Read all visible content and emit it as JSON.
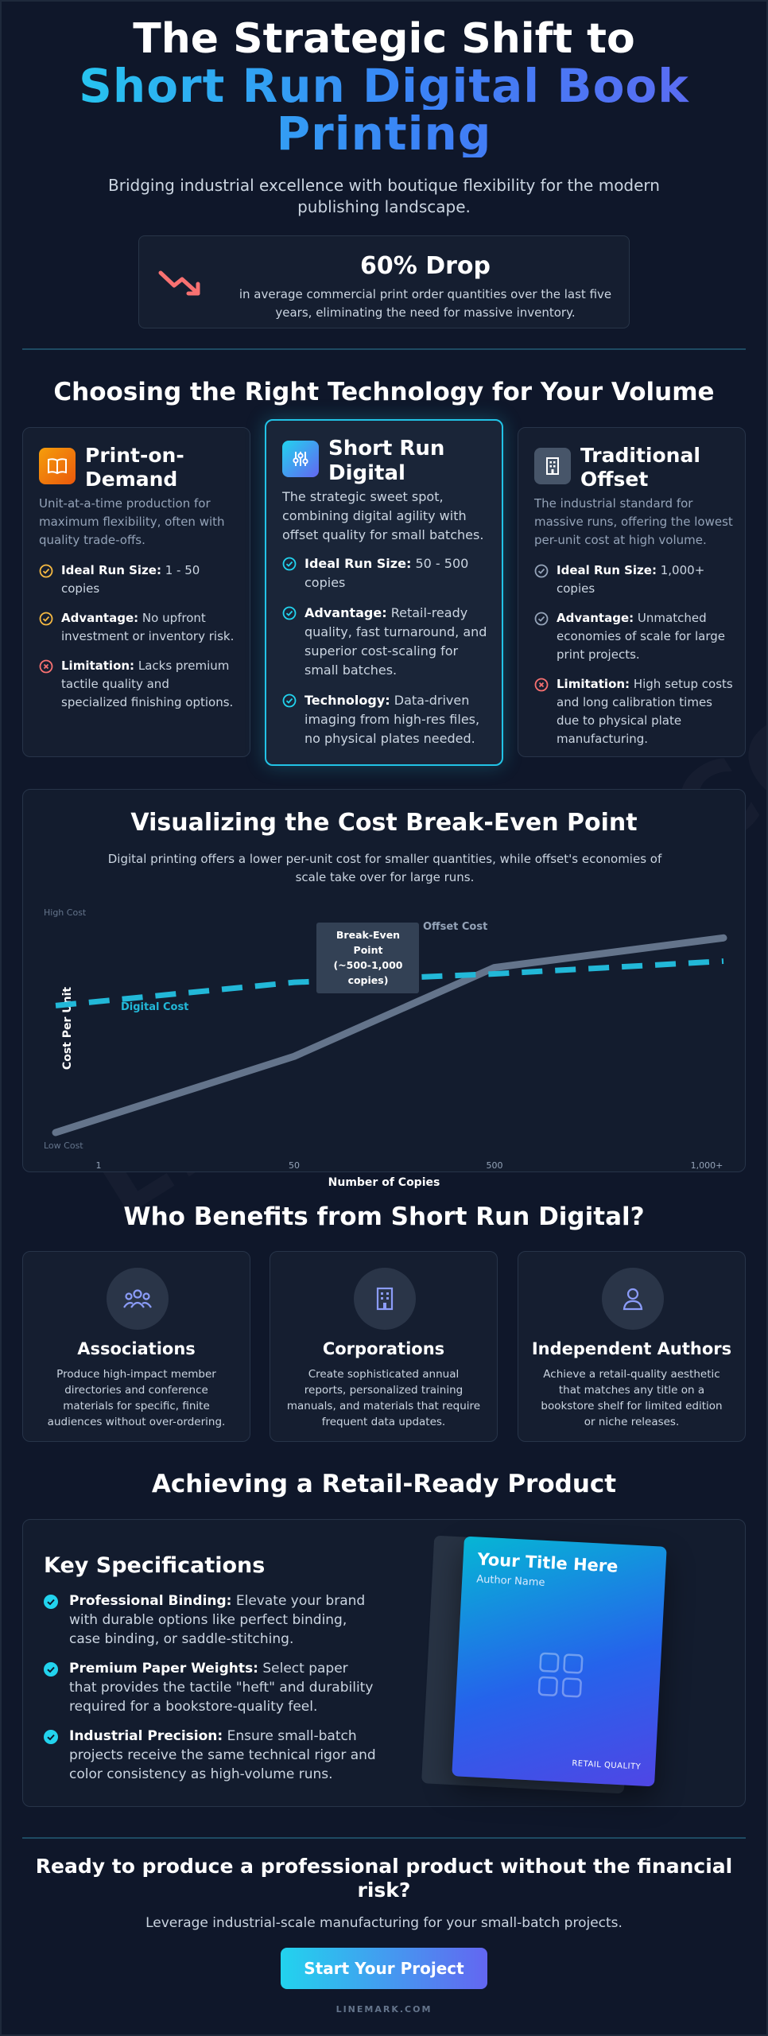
{
  "hero": {
    "title_line1": "The Strategic Shift to",
    "title_line2": "Short Run Digital Book",
    "title_line3": "Printing",
    "subtitle": "Bridging industrial excellence with boutique flexibility for the modern publishing landscape."
  },
  "stat": {
    "value": "60% Drop",
    "description": "in average commercial print order quantities over the last five years, eliminating the need for massive inventory.",
    "icon": "trending-down-icon",
    "color": "#f87171"
  },
  "tech": {
    "title": "Choosing the Right Technology for Your Volume",
    "cards": [
      {
        "title": "Print-on-Demand",
        "icon": "book-icon",
        "description": "Unit-at-a-time production for maximum flexibility, often with quality trade-offs.",
        "items": [
          {
            "label": "Ideal Run Size:",
            "text": "1 - 50 copies",
            "type": "check"
          },
          {
            "label": "Advantage:",
            "text": "No upfront investment or inventory risk.",
            "type": "check"
          },
          {
            "label": "Limitation:",
            "text": "Lacks premium tactile quality and specialized finishing options.",
            "type": "x"
          }
        ]
      },
      {
        "title": "Short Run Digital",
        "icon": "sliders-icon",
        "description": "The strategic sweet spot, combining digital agility with offset quality for small batches.",
        "items": [
          {
            "label": "Ideal Run Size:",
            "text": "50 - 500 copies",
            "type": "check"
          },
          {
            "label": "Advantage:",
            "text": "Retail-ready quality, fast turnaround, and superior cost-scaling for small batches.",
            "type": "check"
          },
          {
            "label": "Technology:",
            "text": "Data-driven imaging from high-res files, no physical plates needed.",
            "type": "check"
          }
        ]
      },
      {
        "title": "Traditional Offset",
        "icon": "building-icon",
        "description": "The industrial standard for massive runs, offering the lowest per-unit cost at high volume.",
        "items": [
          {
            "label": "Ideal Run Size:",
            "text": "1,000+ copies",
            "type": "check"
          },
          {
            "label": "Advantage:",
            "text": "Unmatched economies of scale for large print projects.",
            "type": "check"
          },
          {
            "label": "Limitation:",
            "text": "High setup costs and long calibration times due to physical plate manufacturing.",
            "type": "x"
          }
        ]
      }
    ]
  },
  "chart_section": {
    "title": "Visualizing the Cost Break-Even Point",
    "subtitle": "Digital printing offers a lower per-unit cost for smaller quantities, while offset's economies of scale take over for large runs."
  },
  "chart_data": {
    "type": "line",
    "categories": [
      "1",
      "50",
      "500",
      "1,000+"
    ],
    "xlabel": "Number of Copies",
    "ylabel": "Cost Per Unit",
    "y_top_label": "High Cost",
    "y_bottom_label": "Low Cost",
    "annotation": "Break-Even Point (~500-1,000 copies)",
    "grid": false,
    "ylim": [
      0,
      100
    ],
    "series": [
      {
        "name": "Offset Cost",
        "style": "solid",
        "color": "#64748b",
        "values": [
          3,
          39,
          81,
          95
        ]
      },
      {
        "name": "Digital Cost",
        "style": "dashed",
        "color": "#22b8d8",
        "values": [
          63,
          74,
          78,
          84
        ]
      }
    ]
  },
  "audience": {
    "title": "Who Benefits from Short Run Digital?",
    "cards": [
      {
        "title": "Associations",
        "icon": "users-icon",
        "text": "Produce high-impact member directories and conference materials for specific, finite audiences without over-ordering."
      },
      {
        "title": "Corporations",
        "icon": "building-icon",
        "text": "Create sophisticated annual reports, personalized training manuals, and materials that require frequent data updates."
      },
      {
        "title": "Independent Authors",
        "icon": "user-icon",
        "text": "Achieve a retail-quality aesthetic that matches any title on a bookstore shelf for limited edition or niche releases."
      }
    ]
  },
  "retail": {
    "title": "Achieving a Retail-Ready Product",
    "specs_title": "Key Specifications",
    "specs": [
      {
        "label": "Professional Binding:",
        "text": "Elevate your brand with durable options like perfect binding, case binding, or saddle-stitching."
      },
      {
        "label": "Premium Paper Weights:",
        "text": "Select paper that provides the tactile \"heft\" and durability required for a bookstore-quality feel."
      },
      {
        "label": "Industrial Precision:",
        "text": "Ensure small-batch projects receive the same technical rigor and color consistency as high-volume runs."
      }
    ],
    "book": {
      "title": "Your Title Here",
      "author": "Author Name",
      "badge": "RETAIL QUALITY"
    }
  },
  "cta": {
    "title": "Ready to produce a professional product without the financial risk?",
    "subtitle": "Leverage industrial-scale manufacturing for your small-batch projects.",
    "button": "Start Your Project"
  },
  "footer": {
    "brand": "LINEMARK.COM"
  },
  "watermark": "LINEMARK.COM"
}
